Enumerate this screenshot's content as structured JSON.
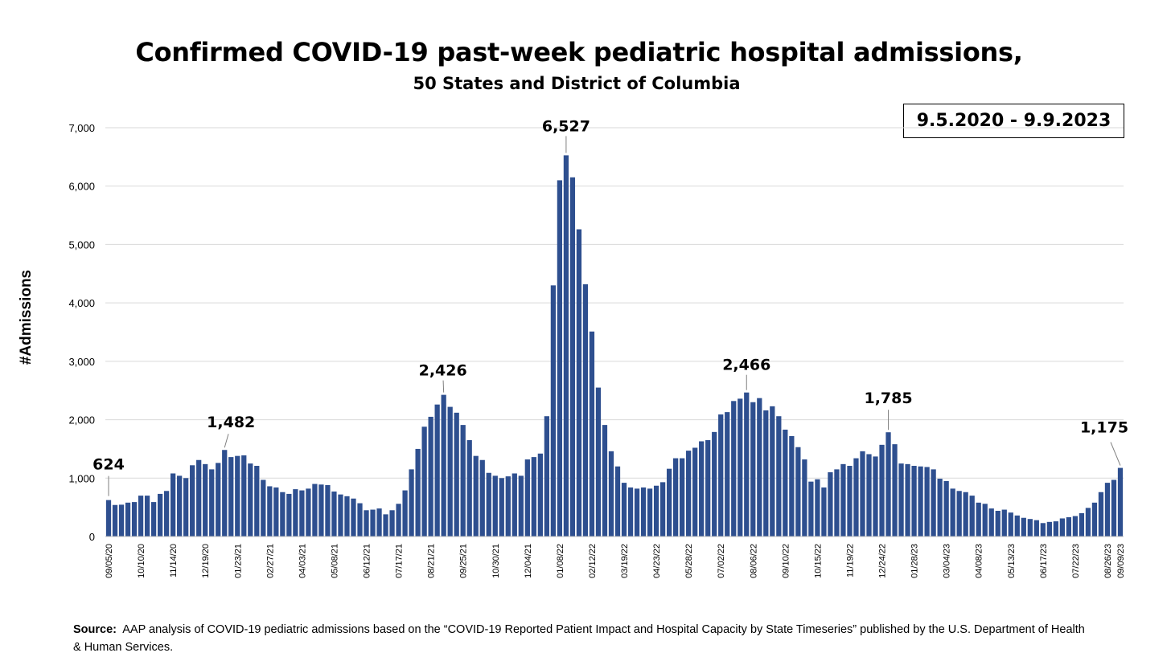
{
  "header": {
    "title": "Confirmed COVID-19 past-week pediatric hospital admissions,",
    "subtitle": "50 States and District of Columbia",
    "date_range": "9.5.2020 - 9.9.2023"
  },
  "footer": {
    "source_label": "Source:",
    "source_text": "AAP analysis of COVID-19 pediatric admissions based on the “COVID-19 Reported Patient Impact and Hospital Capacity by State Timeseries” published by the U.S. Department of Health & Human Services."
  },
  "chart_data": {
    "type": "bar",
    "ylabel": "#Admissions",
    "ylim": [
      0,
      7000
    ],
    "yticks": [
      0,
      1000,
      2000,
      3000,
      4000,
      5000,
      6000,
      7000
    ],
    "ytick_labels": [
      "0",
      "1,000",
      "2,000",
      "3,000",
      "4,000",
      "5,000",
      "6,000",
      "7,000"
    ],
    "grid": "horizontal",
    "bar_color": "#2e4f8f",
    "x_tick_labels": [
      {
        "index": 0,
        "label": "09/05/20"
      },
      {
        "index": 5,
        "label": "10/10/20"
      },
      {
        "index": 10,
        "label": "11/14/20"
      },
      {
        "index": 15,
        "label": "12/19/20"
      },
      {
        "index": 20,
        "label": "01/23/21"
      },
      {
        "index": 25,
        "label": "02/27/21"
      },
      {
        "index": 30,
        "label": "04/03/21"
      },
      {
        "index": 35,
        "label": "05/08/21"
      },
      {
        "index": 40,
        "label": "06/12/21"
      },
      {
        "index": 45,
        "label": "07/17/21"
      },
      {
        "index": 50,
        "label": "08/21/21"
      },
      {
        "index": 55,
        "label": "09/25/21"
      },
      {
        "index": 60,
        "label": "10/30/21"
      },
      {
        "index": 65,
        "label": "12/04/21"
      },
      {
        "index": 70,
        "label": "01/08/22"
      },
      {
        "index": 75,
        "label": "02/12/22"
      },
      {
        "index": 80,
        "label": "03/19/22"
      },
      {
        "index": 85,
        "label": "04/23/22"
      },
      {
        "index": 90,
        "label": "05/28/22"
      },
      {
        "index": 95,
        "label": "07/02/22"
      },
      {
        "index": 100,
        "label": "08/06/22"
      },
      {
        "index": 105,
        "label": "09/10/22"
      },
      {
        "index": 110,
        "label": "10/15/22"
      },
      {
        "index": 115,
        "label": "11/19/22"
      },
      {
        "index": 120,
        "label": "12/24/22"
      },
      {
        "index": 125,
        "label": "01/28/23"
      },
      {
        "index": 130,
        "label": "03/04/23"
      },
      {
        "index": 135,
        "label": "04/08/23"
      },
      {
        "index": 140,
        "label": "05/13/23"
      },
      {
        "index": 145,
        "label": "06/17/23"
      },
      {
        "index": 150,
        "label": "07/22/23"
      },
      {
        "index": 155,
        "label": "08/26/23"
      },
      {
        "index": 157,
        "label": "09/09/23"
      }
    ],
    "values": [
      624,
      540,
      545,
      580,
      590,
      700,
      700,
      590,
      730,
      780,
      1080,
      1040,
      1000,
      1220,
      1310,
      1240,
      1150,
      1260,
      1482,
      1360,
      1380,
      1390,
      1250,
      1210,
      970,
      860,
      840,
      760,
      730,
      810,
      790,
      820,
      900,
      890,
      880,
      770,
      720,
      690,
      650,
      570,
      450,
      460,
      480,
      380,
      450,
      560,
      790,
      1150,
      1500,
      1880,
      2050,
      2260,
      2426,
      2220,
      2120,
      1910,
      1650,
      1380,
      1310,
      1090,
      1040,
      1000,
      1030,
      1080,
      1040,
      1320,
      1360,
      1420,
      2060,
      4300,
      6100,
      6527,
      6150,
      5260,
      4320,
      3510,
      2550,
      1910,
      1460,
      1200,
      920,
      840,
      820,
      840,
      820,
      870,
      930,
      1160,
      1340,
      1340,
      1470,
      1520,
      1630,
      1650,
      1790,
      2090,
      2130,
      2320,
      2360,
      2466,
      2300,
      2370,
      2160,
      2230,
      2060,
      1830,
      1720,
      1530,
      1320,
      940,
      980,
      840,
      1100,
      1150,
      1240,
      1210,
      1340,
      1460,
      1410,
      1370,
      1570,
      1785,
      1580,
      1250,
      1240,
      1210,
      1200,
      1190,
      1150,
      990,
      950,
      820,
      780,
      760,
      700,
      580,
      560,
      480,
      440,
      460,
      410,
      360,
      320,
      300,
      280,
      230,
      250,
      260,
      310,
      330,
      350,
      400,
      490,
      580,
      760,
      920,
      970,
      1175
    ],
    "annotations": [
      {
        "index": 0,
        "label": "624"
      },
      {
        "index": 18,
        "label": "1,482"
      },
      {
        "index": 52,
        "label": "2,426"
      },
      {
        "index": 71,
        "label": "6,527"
      },
      {
        "index": 99,
        "label": "2,466"
      },
      {
        "index": 121,
        "label": "1,785"
      },
      {
        "index": 157,
        "label": "1,175"
      }
    ]
  }
}
